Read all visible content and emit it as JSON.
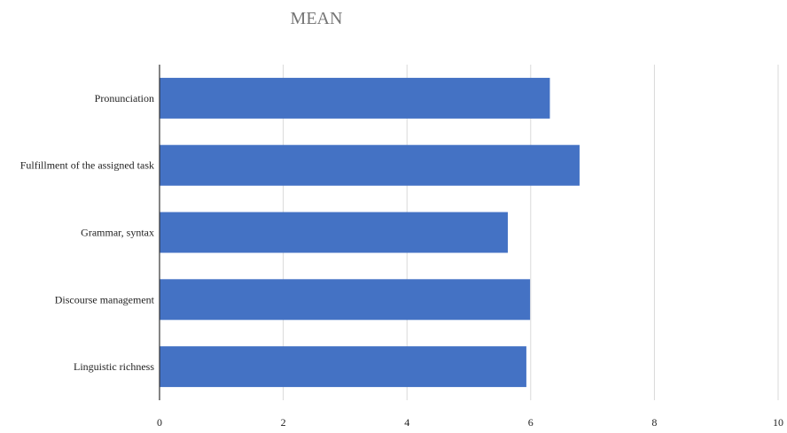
{
  "chart_data": {
    "type": "bar",
    "orientation": "horizontal",
    "title": "MEAN",
    "xlabel": "",
    "ylabel": "",
    "categories": [
      "Pronunciation",
      "Fulfillment of the assigned task",
      "Grammar, syntax",
      "Discourse management",
      "Linguistic richness"
    ],
    "values": [
      6.31,
      6.79,
      5.63,
      5.99,
      5.93
    ],
    "xlim": [
      0,
      10
    ],
    "x_ticks": [
      "0",
      "2",
      "4",
      "6",
      "8",
      "10"
    ],
    "grid": true,
    "legend": "none"
  },
  "colors": {
    "bar": "#4472c4",
    "grid": "#d9d9d9",
    "axis": "#333333",
    "title": "#757575"
  }
}
